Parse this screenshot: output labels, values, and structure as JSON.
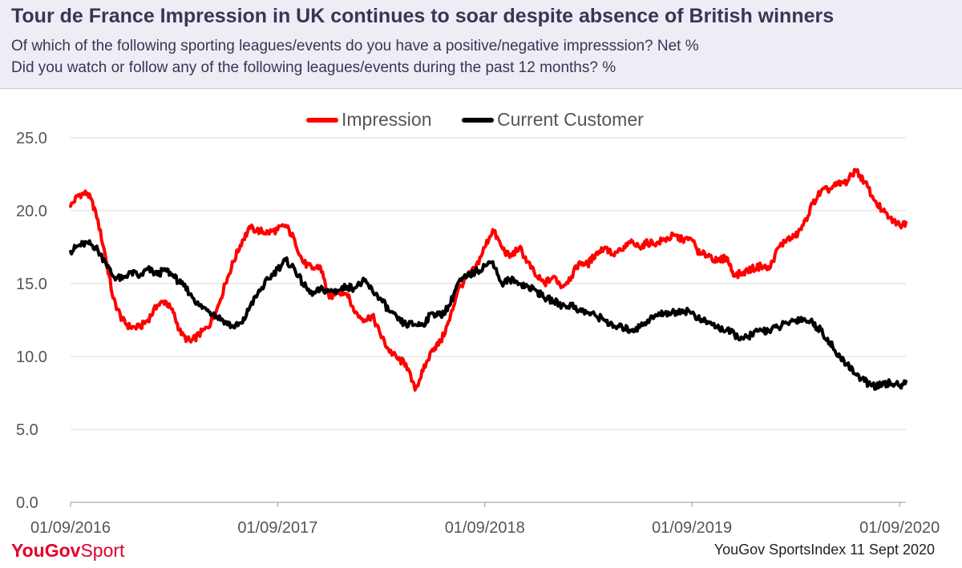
{
  "header": {
    "title": "Tour de France Impression in UK continues to soar despite absence of British winners",
    "subtitle_1": "Of which of the following sporting leagues/events do you have a positive/negative impresssion? Net %",
    "subtitle_2": "Did you watch or follow any of the following leagues/events during the past 12 months? %"
  },
  "footer": {
    "brand_you": "YouGov",
    "brand_sport": "Sport",
    "source": "YouGov SportsIndex 11 Sept 2020"
  },
  "chart_data": {
    "type": "line",
    "title": "",
    "xlabel": "",
    "ylabel": "",
    "ylim": [
      0,
      25
    ],
    "yticks": [
      "0.0",
      "5.0",
      "10.0",
      "15.0",
      "20.0",
      "25.0"
    ],
    "x_tick_labels": [
      "01/09/2016",
      "01/09/2017",
      "01/09/2018",
      "01/09/2019",
      "01/09/2020"
    ],
    "x_range": [
      "2016-09-01",
      "2020-09-12"
    ],
    "grid": true,
    "legend_position": "top-center",
    "series": [
      {
        "name": "Impression",
        "color": "#ff0000",
        "points": [
          [
            "2016-09-01",
            20.3
          ],
          [
            "2016-09-15",
            21.1
          ],
          [
            "2016-10-01",
            21.2
          ],
          [
            "2016-10-15",
            20.0
          ],
          [
            "2016-11-01",
            17.0
          ],
          [
            "2016-11-15",
            14.0
          ],
          [
            "2016-12-01",
            12.5
          ],
          [
            "2016-12-15",
            12.0
          ],
          [
            "2017-01-01",
            12.0
          ],
          [
            "2017-01-15",
            12.5
          ],
          [
            "2017-02-01",
            13.5
          ],
          [
            "2017-02-15",
            13.8
          ],
          [
            "2017-03-01",
            13.0
          ],
          [
            "2017-03-15",
            11.5
          ],
          [
            "2017-04-01",
            11.0
          ],
          [
            "2017-04-15",
            11.5
          ],
          [
            "2017-05-01",
            12.0
          ],
          [
            "2017-05-15",
            13.0
          ],
          [
            "2017-06-01",
            15.0
          ],
          [
            "2017-06-15",
            16.5
          ],
          [
            "2017-07-01",
            18.0
          ],
          [
            "2017-07-15",
            18.8
          ],
          [
            "2017-08-01",
            18.6
          ],
          [
            "2017-08-15",
            18.5
          ],
          [
            "2017-09-01",
            18.7
          ],
          [
            "2017-09-15",
            19.0
          ],
          [
            "2017-10-01",
            18.0
          ],
          [
            "2017-10-15",
            16.5
          ],
          [
            "2017-11-01",
            16.0
          ],
          [
            "2017-11-15",
            16.2
          ],
          [
            "2017-12-01",
            14.0
          ],
          [
            "2017-12-15",
            14.5
          ],
          [
            "2018-01-01",
            14.3
          ],
          [
            "2018-01-15",
            13.0
          ],
          [
            "2018-02-01",
            12.5
          ],
          [
            "2018-02-15",
            12.8
          ],
          [
            "2018-03-01",
            11.5
          ],
          [
            "2018-03-15",
            10.5
          ],
          [
            "2018-04-01",
            9.8
          ],
          [
            "2018-04-15",
            9.5
          ],
          [
            "2018-05-01",
            7.7
          ],
          [
            "2018-05-15",
            9.0
          ],
          [
            "2018-06-01",
            10.5
          ],
          [
            "2018-06-15",
            11.0
          ],
          [
            "2018-07-01",
            12.5
          ],
          [
            "2018-07-15",
            14.5
          ],
          [
            "2018-08-01",
            15.5
          ],
          [
            "2018-08-15",
            16.0
          ],
          [
            "2018-09-01",
            17.5
          ],
          [
            "2018-09-15",
            18.7
          ],
          [
            "2018-10-01",
            17.5
          ],
          [
            "2018-10-15",
            16.8
          ],
          [
            "2018-11-01",
            17.5
          ],
          [
            "2018-11-15",
            16.5
          ],
          [
            "2018-12-01",
            15.5
          ],
          [
            "2018-12-15",
            15.0
          ],
          [
            "2019-01-01",
            15.5
          ],
          [
            "2019-01-15",
            14.8
          ],
          [
            "2019-02-01",
            15.5
          ],
          [
            "2019-02-15",
            16.5
          ],
          [
            "2019-03-01",
            16.3
          ],
          [
            "2019-03-15",
            17.0
          ],
          [
            "2019-04-01",
            17.5
          ],
          [
            "2019-04-15",
            17.0
          ],
          [
            "2019-05-01",
            17.3
          ],
          [
            "2019-05-15",
            17.8
          ],
          [
            "2019-06-01",
            17.5
          ],
          [
            "2019-06-15",
            17.8
          ],
          [
            "2019-07-01",
            17.8
          ],
          [
            "2019-07-15",
            18.0
          ],
          [
            "2019-08-01",
            18.3
          ],
          [
            "2019-08-15",
            18.0
          ],
          [
            "2019-09-01",
            18.0
          ],
          [
            "2019-09-15",
            17.0
          ],
          [
            "2019-10-01",
            17.0
          ],
          [
            "2019-10-15",
            16.5
          ],
          [
            "2019-11-01",
            16.8
          ],
          [
            "2019-11-15",
            15.5
          ],
          [
            "2019-12-01",
            15.8
          ],
          [
            "2019-12-15",
            16.0
          ],
          [
            "2020-01-01",
            16.2
          ],
          [
            "2020-01-15",
            16.0
          ],
          [
            "2020-02-01",
            17.5
          ],
          [
            "2020-02-15",
            18.0
          ],
          [
            "2020-03-01",
            18.2
          ],
          [
            "2020-03-15",
            19.0
          ],
          [
            "2020-04-01",
            20.5
          ],
          [
            "2020-04-15",
            21.3
          ],
          [
            "2020-05-01",
            21.5
          ],
          [
            "2020-05-15",
            21.8
          ],
          [
            "2020-06-01",
            22.0
          ],
          [
            "2020-06-15",
            22.8
          ],
          [
            "2020-07-01",
            22.0
          ],
          [
            "2020-07-15",
            21.0
          ],
          [
            "2020-08-01",
            20.0
          ],
          [
            "2020-08-15",
            19.5
          ],
          [
            "2020-09-01",
            19.0
          ],
          [
            "2020-09-12",
            19.2
          ]
        ]
      },
      {
        "name": "Current Customer",
        "color": "#000000",
        "points": [
          [
            "2016-09-01",
            17.2
          ],
          [
            "2016-09-15",
            17.6
          ],
          [
            "2016-10-01",
            17.8
          ],
          [
            "2016-10-15",
            17.5
          ],
          [
            "2016-11-01",
            16.5
          ],
          [
            "2016-11-15",
            15.5
          ],
          [
            "2016-12-01",
            15.3
          ],
          [
            "2016-12-15",
            15.8
          ],
          [
            "2017-01-01",
            15.5
          ],
          [
            "2017-01-15",
            16.0
          ],
          [
            "2017-02-01",
            15.6
          ],
          [
            "2017-02-15",
            16.0
          ],
          [
            "2017-03-01",
            15.5
          ],
          [
            "2017-03-15",
            15.0
          ],
          [
            "2017-04-01",
            14.3
          ],
          [
            "2017-04-15",
            13.5
          ],
          [
            "2017-05-01",
            13.2
          ],
          [
            "2017-05-15",
            12.8
          ],
          [
            "2017-06-01",
            12.4
          ],
          [
            "2017-06-15",
            12.0
          ],
          [
            "2017-07-01",
            12.3
          ],
          [
            "2017-07-15",
            13.5
          ],
          [
            "2017-08-01",
            14.5
          ],
          [
            "2017-08-15",
            15.3
          ],
          [
            "2017-09-01",
            16.0
          ],
          [
            "2017-09-15",
            16.6
          ],
          [
            "2017-10-01",
            16.0
          ],
          [
            "2017-10-15",
            15.0
          ],
          [
            "2017-11-01",
            14.2
          ],
          [
            "2017-11-15",
            14.6
          ],
          [
            "2017-12-01",
            14.5
          ],
          [
            "2017-12-15",
            14.5
          ],
          [
            "2018-01-01",
            14.8
          ],
          [
            "2018-01-15",
            14.7
          ],
          [
            "2018-02-01",
            15.2
          ],
          [
            "2018-02-15",
            14.5
          ],
          [
            "2018-03-01",
            14.0
          ],
          [
            "2018-03-15",
            13.2
          ],
          [
            "2018-04-01",
            12.5
          ],
          [
            "2018-04-15",
            12.2
          ],
          [
            "2018-05-01",
            12.2
          ],
          [
            "2018-05-15",
            12.2
          ],
          [
            "2018-06-01",
            13.0
          ],
          [
            "2018-06-15",
            12.8
          ],
          [
            "2018-07-01",
            13.5
          ],
          [
            "2018-07-15",
            15.0
          ],
          [
            "2018-08-01",
            15.5
          ],
          [
            "2018-08-15",
            15.8
          ],
          [
            "2018-09-01",
            16.2
          ],
          [
            "2018-09-15",
            16.5
          ],
          [
            "2018-10-01",
            15.0
          ],
          [
            "2018-10-15",
            15.3
          ],
          [
            "2018-11-01",
            15.0
          ],
          [
            "2018-11-15",
            14.8
          ],
          [
            "2018-12-01",
            14.5
          ],
          [
            "2018-12-15",
            14.0
          ],
          [
            "2019-01-01",
            13.8
          ],
          [
            "2019-01-15",
            13.5
          ],
          [
            "2019-02-01",
            13.5
          ],
          [
            "2019-02-15",
            13.2
          ],
          [
            "2019-03-01",
            13.0
          ],
          [
            "2019-03-15",
            12.8
          ],
          [
            "2019-04-01",
            12.5
          ],
          [
            "2019-04-15",
            12.0
          ],
          [
            "2019-05-01",
            12.0
          ],
          [
            "2019-05-15",
            11.8
          ],
          [
            "2019-06-01",
            12.0
          ],
          [
            "2019-06-15",
            12.5
          ],
          [
            "2019-07-01",
            12.8
          ],
          [
            "2019-07-15",
            13.0
          ],
          [
            "2019-08-01",
            13.0
          ],
          [
            "2019-08-15",
            13.2
          ],
          [
            "2019-09-01",
            13.0
          ],
          [
            "2019-09-15",
            12.5
          ],
          [
            "2019-10-01",
            12.3
          ],
          [
            "2019-10-15",
            12.0
          ],
          [
            "2019-11-01",
            11.8
          ],
          [
            "2019-11-15",
            11.5
          ],
          [
            "2019-12-01",
            11.2
          ],
          [
            "2019-12-15",
            11.5
          ],
          [
            "2020-01-01",
            11.8
          ],
          [
            "2020-01-15",
            11.8
          ],
          [
            "2020-02-01",
            12.0
          ],
          [
            "2020-02-15",
            12.3
          ],
          [
            "2020-03-01",
            12.5
          ],
          [
            "2020-03-15",
            12.6
          ],
          [
            "2020-04-01",
            12.3
          ],
          [
            "2020-04-15",
            11.8
          ],
          [
            "2020-05-01",
            11.0
          ],
          [
            "2020-05-15",
            10.0
          ],
          [
            "2020-06-01",
            9.5
          ],
          [
            "2020-06-15",
            8.8
          ],
          [
            "2020-07-01",
            8.3
          ],
          [
            "2020-07-15",
            8.0
          ],
          [
            "2020-08-01",
            8.0
          ],
          [
            "2020-08-15",
            8.2
          ],
          [
            "2020-09-01",
            8.0
          ],
          [
            "2020-09-12",
            8.3
          ]
        ]
      }
    ]
  }
}
